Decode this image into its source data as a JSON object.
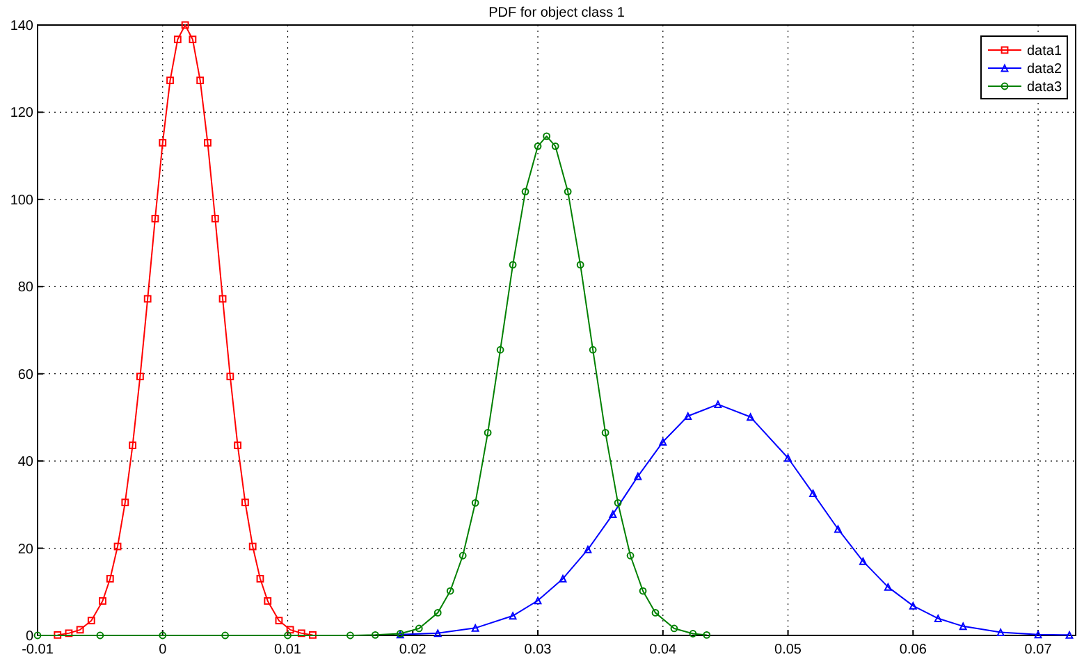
{
  "chart_data": {
    "type": "line",
    "title": "PDF for object class 1",
    "xlim": [
      -0.01,
      0.073
    ],
    "xticks": [
      -0.01,
      0,
      0.01,
      0.02,
      0.03,
      0.04,
      0.05,
      0.06,
      0.07
    ],
    "ylim": [
      0,
      140
    ],
    "yticks": [
      0,
      20,
      40,
      60,
      80,
      100,
      120,
      140
    ],
    "grid": true,
    "legend": "top right",
    "line_style": "solid",
    "series": [
      {
        "name": "data1",
        "color": "#ff0000",
        "marker": "square",
        "x": [
          -0.0084,
          -0.0075,
          -0.0066,
          -0.0057,
          -0.0048,
          -0.0042,
          -0.0036,
          -0.003,
          -0.0024,
          -0.0018,
          -0.0012,
          -0.0006,
          0,
          0.0006,
          0.0012,
          0.0018,
          0.0024,
          0.003,
          0.0036,
          0.0042,
          0.0048,
          0.0054,
          0.006,
          0.0066,
          0.0072,
          0.0078,
          0.0084,
          0.0093,
          0.0102,
          0.0111,
          0.012
        ],
        "values": [
          0.1,
          0.5,
          1.3,
          3.4,
          7.9,
          13,
          20.4,
          30.5,
          43.6,
          59.4,
          77.2,
          95.6,
          113,
          127.3,
          136.7,
          140,
          136.7,
          127.3,
          113,
          95.6,
          77.2,
          59.4,
          43.6,
          30.5,
          20.4,
          13,
          7.9,
          3.4,
          1.3,
          0.5,
          0.1
        ]
      },
      {
        "name": "data2",
        "color": "#0000ff",
        "marker": "triangle",
        "x": [
          0.019,
          0.022,
          0.025,
          0.028,
          0.03,
          0.032,
          0.034,
          0.036,
          0.038,
          0.04,
          0.042,
          0.0444,
          0.047,
          0.05,
          0.052,
          0.054,
          0.056,
          0.058,
          0.06,
          0.062,
          0.064,
          0.067,
          0.07,
          0.0725
        ],
        "values": [
          0.2,
          0.5,
          1.7,
          4.5,
          8,
          13,
          19.7,
          27.8,
          36.5,
          44.4,
          50.3,
          53,
          50.1,
          40.7,
          32.6,
          24.4,
          17,
          11.1,
          6.8,
          3.9,
          2.1,
          0.7,
          0.2,
          0.1
        ]
      },
      {
        "name": "data3",
        "color": "#008000",
        "marker": "circle",
        "x": [
          -0.01,
          -0.005,
          0,
          0.005,
          0.01,
          0.015,
          0.017,
          0.019,
          0.0205,
          0.022,
          0.023,
          0.024,
          0.025,
          0.026,
          0.027,
          0.028,
          0.029,
          0.03,
          0.0307,
          0.0314,
          0.0324,
          0.0334,
          0.0344,
          0.0354,
          0.0364,
          0.0374,
          0.0384,
          0.0394,
          0.0409,
          0.0424,
          0.0435
        ],
        "values": [
          0,
          0,
          0,
          0,
          0,
          0,
          0.1,
          0.4,
          1.6,
          5.2,
          10.2,
          18.3,
          30.4,
          46.5,
          65.5,
          85,
          101.8,
          112.2,
          114.5,
          112.2,
          101.8,
          85,
          65.5,
          46.5,
          30.4,
          18.3,
          10.2,
          5.2,
          1.6,
          0.4,
          0.1
        ]
      }
    ]
  }
}
